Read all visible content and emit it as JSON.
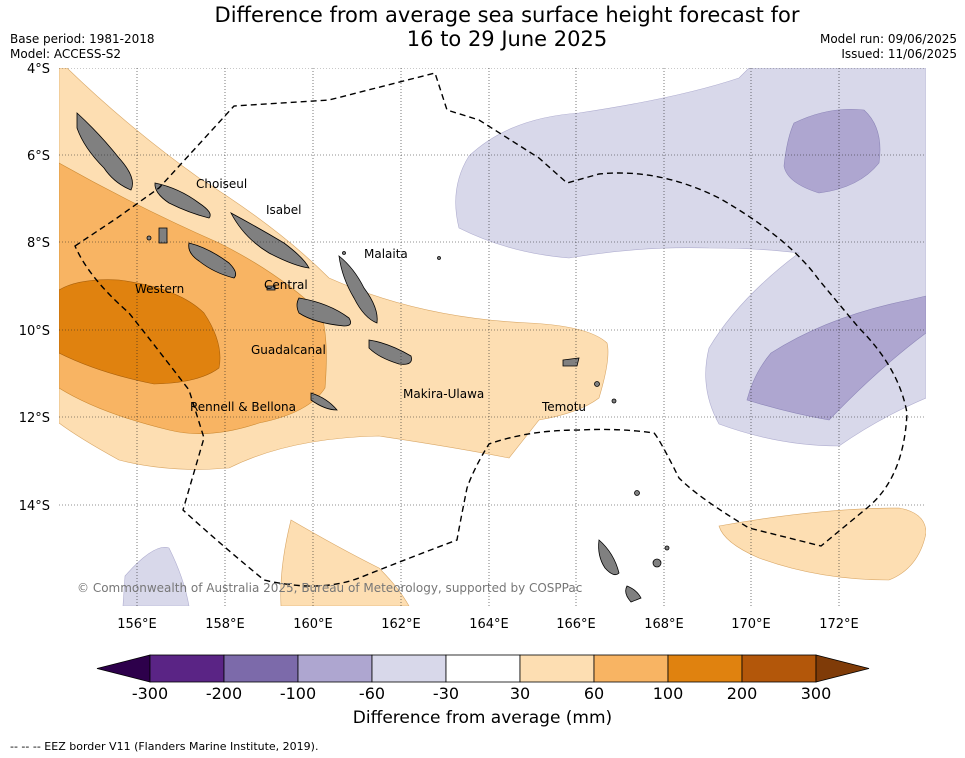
{
  "title": "Difference from average sea surface height forecast for\n16 to 29 June 2025",
  "meta_left": "Base period: 1981-2018\nModel: ACCESS-S2",
  "meta_right": "Model run: 09/06/2025\nIssued: 11/06/2025",
  "lat_ticks": [
    "4°S",
    "6°S",
    "8°S",
    "10°S",
    "12°S",
    "14°S"
  ],
  "lon_ticks": [
    "156°E",
    "158°E",
    "160°E",
    "162°E",
    "164°E",
    "166°E",
    "168°E",
    "170°E",
    "172°E"
  ],
  "regions": [
    "Choiseul",
    "Isabel",
    "Malaita",
    "Western",
    "Central",
    "Guadalcanal",
    "Makira-Ulawa",
    "Rennell & Bellona",
    "Temotu"
  ],
  "copyright": "© Commonwealth of Australia 2025, Bureau of Meteorology, supported by COSPPac",
  "colorbar": {
    "title": "Difference from average (mm)",
    "ticks": [
      "-300",
      "-200",
      "-100",
      "-60",
      "-30",
      "30",
      "60",
      "100",
      "200",
      "300"
    ],
    "colors": [
      "#5a2485",
      "#7c6aaa",
      "#aea6d0",
      "#d8d8ea",
      "#ffffff",
      "#fddeb2",
      "#f8b463",
      "#e0820f",
      "#b3570a"
    ],
    "under_color": "#2d004b",
    "over_color": "#7f3b08"
  },
  "eez_note": "--  --  -- EEZ border V11 (Flanders Marine Institute, 2019)."
}
